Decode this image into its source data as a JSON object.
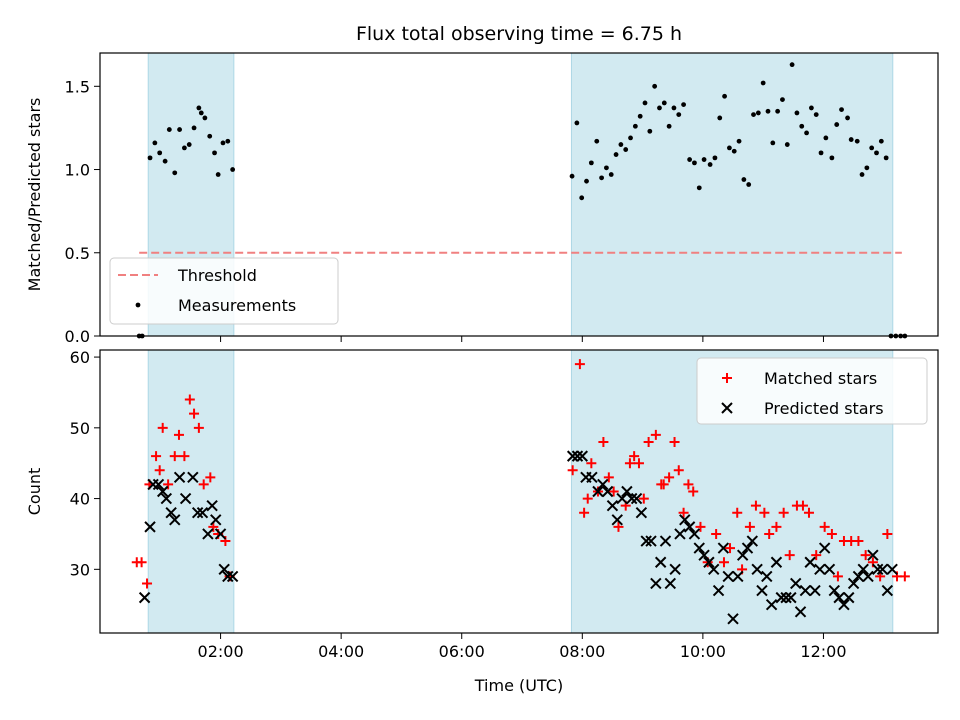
{
  "chart_data": [
    {
      "type": "scatter",
      "title": "Flux total observing time = 6.75 h",
      "xlabel": "",
      "ylabel": "Matched/Predicted stars",
      "xlim": [
        0.0,
        13.9
      ],
      "ylim": [
        0.0,
        1.7
      ],
      "y_ticks": [
        {
          "value": 0.0,
          "label": "0.0"
        },
        {
          "value": 0.5,
          "label": "0.5"
        },
        {
          "value": 1.0,
          "label": "1.0"
        },
        {
          "value": 1.5,
          "label": "1.5"
        }
      ],
      "grid": false,
      "legend_position": "lower-left",
      "shaded_spans": [
        [
          0.8,
          2.22
        ],
        [
          7.82,
          13.15
        ]
      ],
      "shade_color": "#add8e6",
      "threshold": {
        "name": "Threshold",
        "value": 0.5,
        "x_range": [
          0.65,
          13.3
        ],
        "color": "#f08080"
      },
      "series": [
        {
          "name": "Measurements",
          "color": "#000000",
          "x": [
            0.65,
            0.7,
            0.83,
            0.91,
            0.99,
            1.08,
            1.15,
            1.24,
            1.32,
            1.4,
            1.48,
            1.56,
            1.64,
            1.68,
            1.74,
            1.82,
            1.9,
            1.96,
            2.04,
            2.12,
            2.2,
            7.83,
            7.91,
            7.99,
            8.07,
            8.15,
            8.24,
            8.32,
            8.4,
            8.48,
            8.56,
            8.64,
            8.72,
            8.8,
            8.88,
            8.96,
            9.04,
            9.12,
            9.2,
            9.28,
            9.36,
            9.44,
            9.52,
            9.6,
            9.68,
            9.78,
            9.86,
            9.94,
            10.02,
            10.12,
            10.2,
            10.28,
            10.36,
            10.44,
            10.52,
            10.6,
            10.68,
            10.76,
            10.84,
            10.92,
            11.0,
            11.08,
            11.16,
            11.24,
            11.32,
            11.4,
            11.48,
            11.56,
            11.64,
            11.72,
            11.8,
            11.88,
            11.96,
            12.04,
            12.14,
            12.22,
            12.3,
            12.4,
            12.46,
            12.56,
            12.64,
            12.72,
            12.8,
            12.88,
            12.96,
            13.04,
            13.12,
            13.2,
            13.28,
            13.35
          ],
          "y": [
            0.0,
            0.0,
            1.07,
            1.16,
            1.1,
            1.05,
            1.24,
            0.98,
            1.24,
            1.13,
            1.15,
            1.25,
            1.37,
            1.34,
            1.31,
            1.2,
            1.1,
            0.97,
            1.16,
            1.17,
            1.0,
            0.96,
            1.28,
            0.83,
            0.93,
            1.04,
            1.17,
            0.95,
            1.01,
            0.97,
            1.09,
            1.15,
            1.12,
            1.19,
            1.26,
            1.32,
            1.4,
            1.23,
            1.5,
            1.37,
            1.4,
            1.26,
            1.37,
            1.33,
            1.39,
            1.06,
            1.04,
            0.89,
            1.06,
            1.03,
            1.07,
            1.31,
            1.44,
            1.13,
            1.11,
            1.17,
            0.94,
            0.91,
            1.33,
            1.34,
            1.52,
            1.35,
            1.16,
            1.35,
            1.42,
            1.15,
            1.63,
            1.34,
            1.26,
            1.22,
            1.37,
            1.33,
            1.1,
            1.19,
            1.07,
            1.27,
            1.36,
            1.31,
            1.18,
            1.17,
            0.97,
            1.01,
            1.13,
            1.1,
            1.17,
            1.07,
            0.0,
            0.0,
            0.0,
            0.0
          ]
        }
      ]
    },
    {
      "type": "scatter",
      "title": "",
      "xlabel": "Time (UTC)",
      "ylabel": "Count",
      "xlim": [
        0.0,
        13.9
      ],
      "ylim": [
        21.0,
        61.0
      ],
      "x_ticks": [
        {
          "value": 2,
          "label": "02:00"
        },
        {
          "value": 4,
          "label": "04:00"
        },
        {
          "value": 6,
          "label": "06:00"
        },
        {
          "value": 8,
          "label": "08:00"
        },
        {
          "value": 10,
          "label": "10:00"
        },
        {
          "value": 12,
          "label": "12:00"
        }
      ],
      "y_ticks": [
        {
          "value": 30,
          "label": "30"
        },
        {
          "value": 40,
          "label": "40"
        },
        {
          "value": 50,
          "label": "50"
        },
        {
          "value": 60,
          "label": "60"
        }
      ],
      "grid": false,
      "legend_position": "upper-right",
      "shaded_spans": [
        [
          0.8,
          2.22
        ],
        [
          7.82,
          13.15
        ]
      ],
      "shade_color": "#add8e6",
      "series": [
        {
          "name": "Matched stars",
          "marker": "plus",
          "color": "#ff0000",
          "x": [
            0.61,
            0.69,
            0.78,
            0.82,
            0.93,
            0.99,
            1.04,
            1.13,
            1.24,
            1.31,
            1.4,
            1.49,
            1.56,
            1.64,
            1.72,
            1.83,
            1.88,
            1.96,
            2.08,
            2.15,
            7.84,
            7.96,
            8.03,
            8.09,
            8.15,
            8.26,
            8.35,
            8.44,
            8.52,
            8.6,
            8.72,
            8.79,
            8.86,
            8.94,
            9.02,
            9.1,
            9.22,
            9.31,
            9.35,
            9.44,
            9.53,
            9.6,
            9.68,
            9.76,
            9.84,
            9.96,
            10.08,
            10.22,
            10.35,
            10.45,
            10.57,
            10.65,
            10.78,
            10.88,
            11.02,
            11.1,
            11.22,
            11.34,
            11.44,
            11.56,
            11.66,
            11.76,
            11.88,
            12.02,
            12.14,
            12.24,
            12.34,
            12.46,
            12.58,
            12.7,
            12.82,
            12.94,
            13.06,
            13.22,
            13.35
          ],
          "y": [
            31,
            31,
            28,
            42,
            46,
            44,
            50,
            42,
            46,
            49,
            46,
            54,
            52,
            50,
            42,
            43,
            36,
            35,
            34,
            29,
            44,
            59,
            38,
            40,
            45,
            41,
            48,
            43,
            41,
            36,
            39,
            45,
            46,
            45,
            40,
            48,
            49,
            42,
            42,
            43,
            48,
            44,
            38,
            42,
            41,
            36,
            31,
            35,
            31,
            33,
            38,
            30,
            36,
            39,
            38,
            35,
            36,
            38,
            32,
            39,
            39,
            38,
            32,
            36,
            35,
            29,
            34,
            34,
            34,
            32,
            31,
            29,
            35,
            29,
            29
          ]
        },
        {
          "name": "Predicted stars",
          "marker": "x",
          "color": "#000000",
          "x": [
            0.74,
            0.83,
            0.88,
            0.97,
            1.04,
            1.1,
            1.18,
            1.24,
            1.32,
            1.42,
            1.54,
            1.62,
            1.7,
            1.79,
            1.86,
            1.92,
            2.0,
            2.06,
            2.12,
            2.2,
            7.84,
            7.92,
            8.0,
            8.06,
            8.16,
            8.26,
            8.34,
            8.42,
            8.5,
            8.58,
            8.66,
            8.74,
            8.82,
            8.9,
            8.98,
            9.06,
            9.14,
            9.22,
            9.3,
            9.38,
            9.46,
            9.54,
            9.62,
            9.7,
            9.78,
            9.86,
            9.94,
            10.02,
            10.1,
            10.18,
            10.26,
            10.34,
            10.42,
            10.5,
            10.58,
            10.66,
            10.74,
            10.82,
            10.9,
            10.98,
            11.06,
            11.14,
            11.22,
            11.3,
            11.38,
            11.46,
            11.54,
            11.62,
            11.7,
            11.78,
            11.86,
            11.94,
            12.02,
            12.1,
            12.18,
            12.26,
            12.34,
            12.42,
            12.5,
            12.58,
            12.66,
            12.74,
            12.82,
            12.9,
            12.98,
            13.06,
            13.14
          ],
          "y": [
            26,
            36,
            42,
            42,
            41,
            40,
            38,
            37,
            43,
            40,
            43,
            38,
            38,
            35,
            39,
            37,
            35,
            30,
            29,
            29,
            46,
            46,
            46,
            43,
            43,
            41,
            42,
            41,
            39,
            37,
            40,
            41,
            40,
            40,
            38,
            34,
            34,
            28,
            31,
            34,
            28,
            30,
            35,
            37,
            36,
            35,
            33,
            32,
            31,
            30,
            27,
            33,
            29,
            23,
            29,
            32,
            33,
            34,
            30,
            27,
            29,
            25,
            31,
            26,
            26,
            26,
            28,
            24,
            27,
            31,
            27,
            30,
            33,
            30,
            27,
            26,
            25,
            26,
            28,
            29,
            30,
            29,
            32,
            30,
            30,
            27,
            30
          ]
        }
      ]
    }
  ]
}
